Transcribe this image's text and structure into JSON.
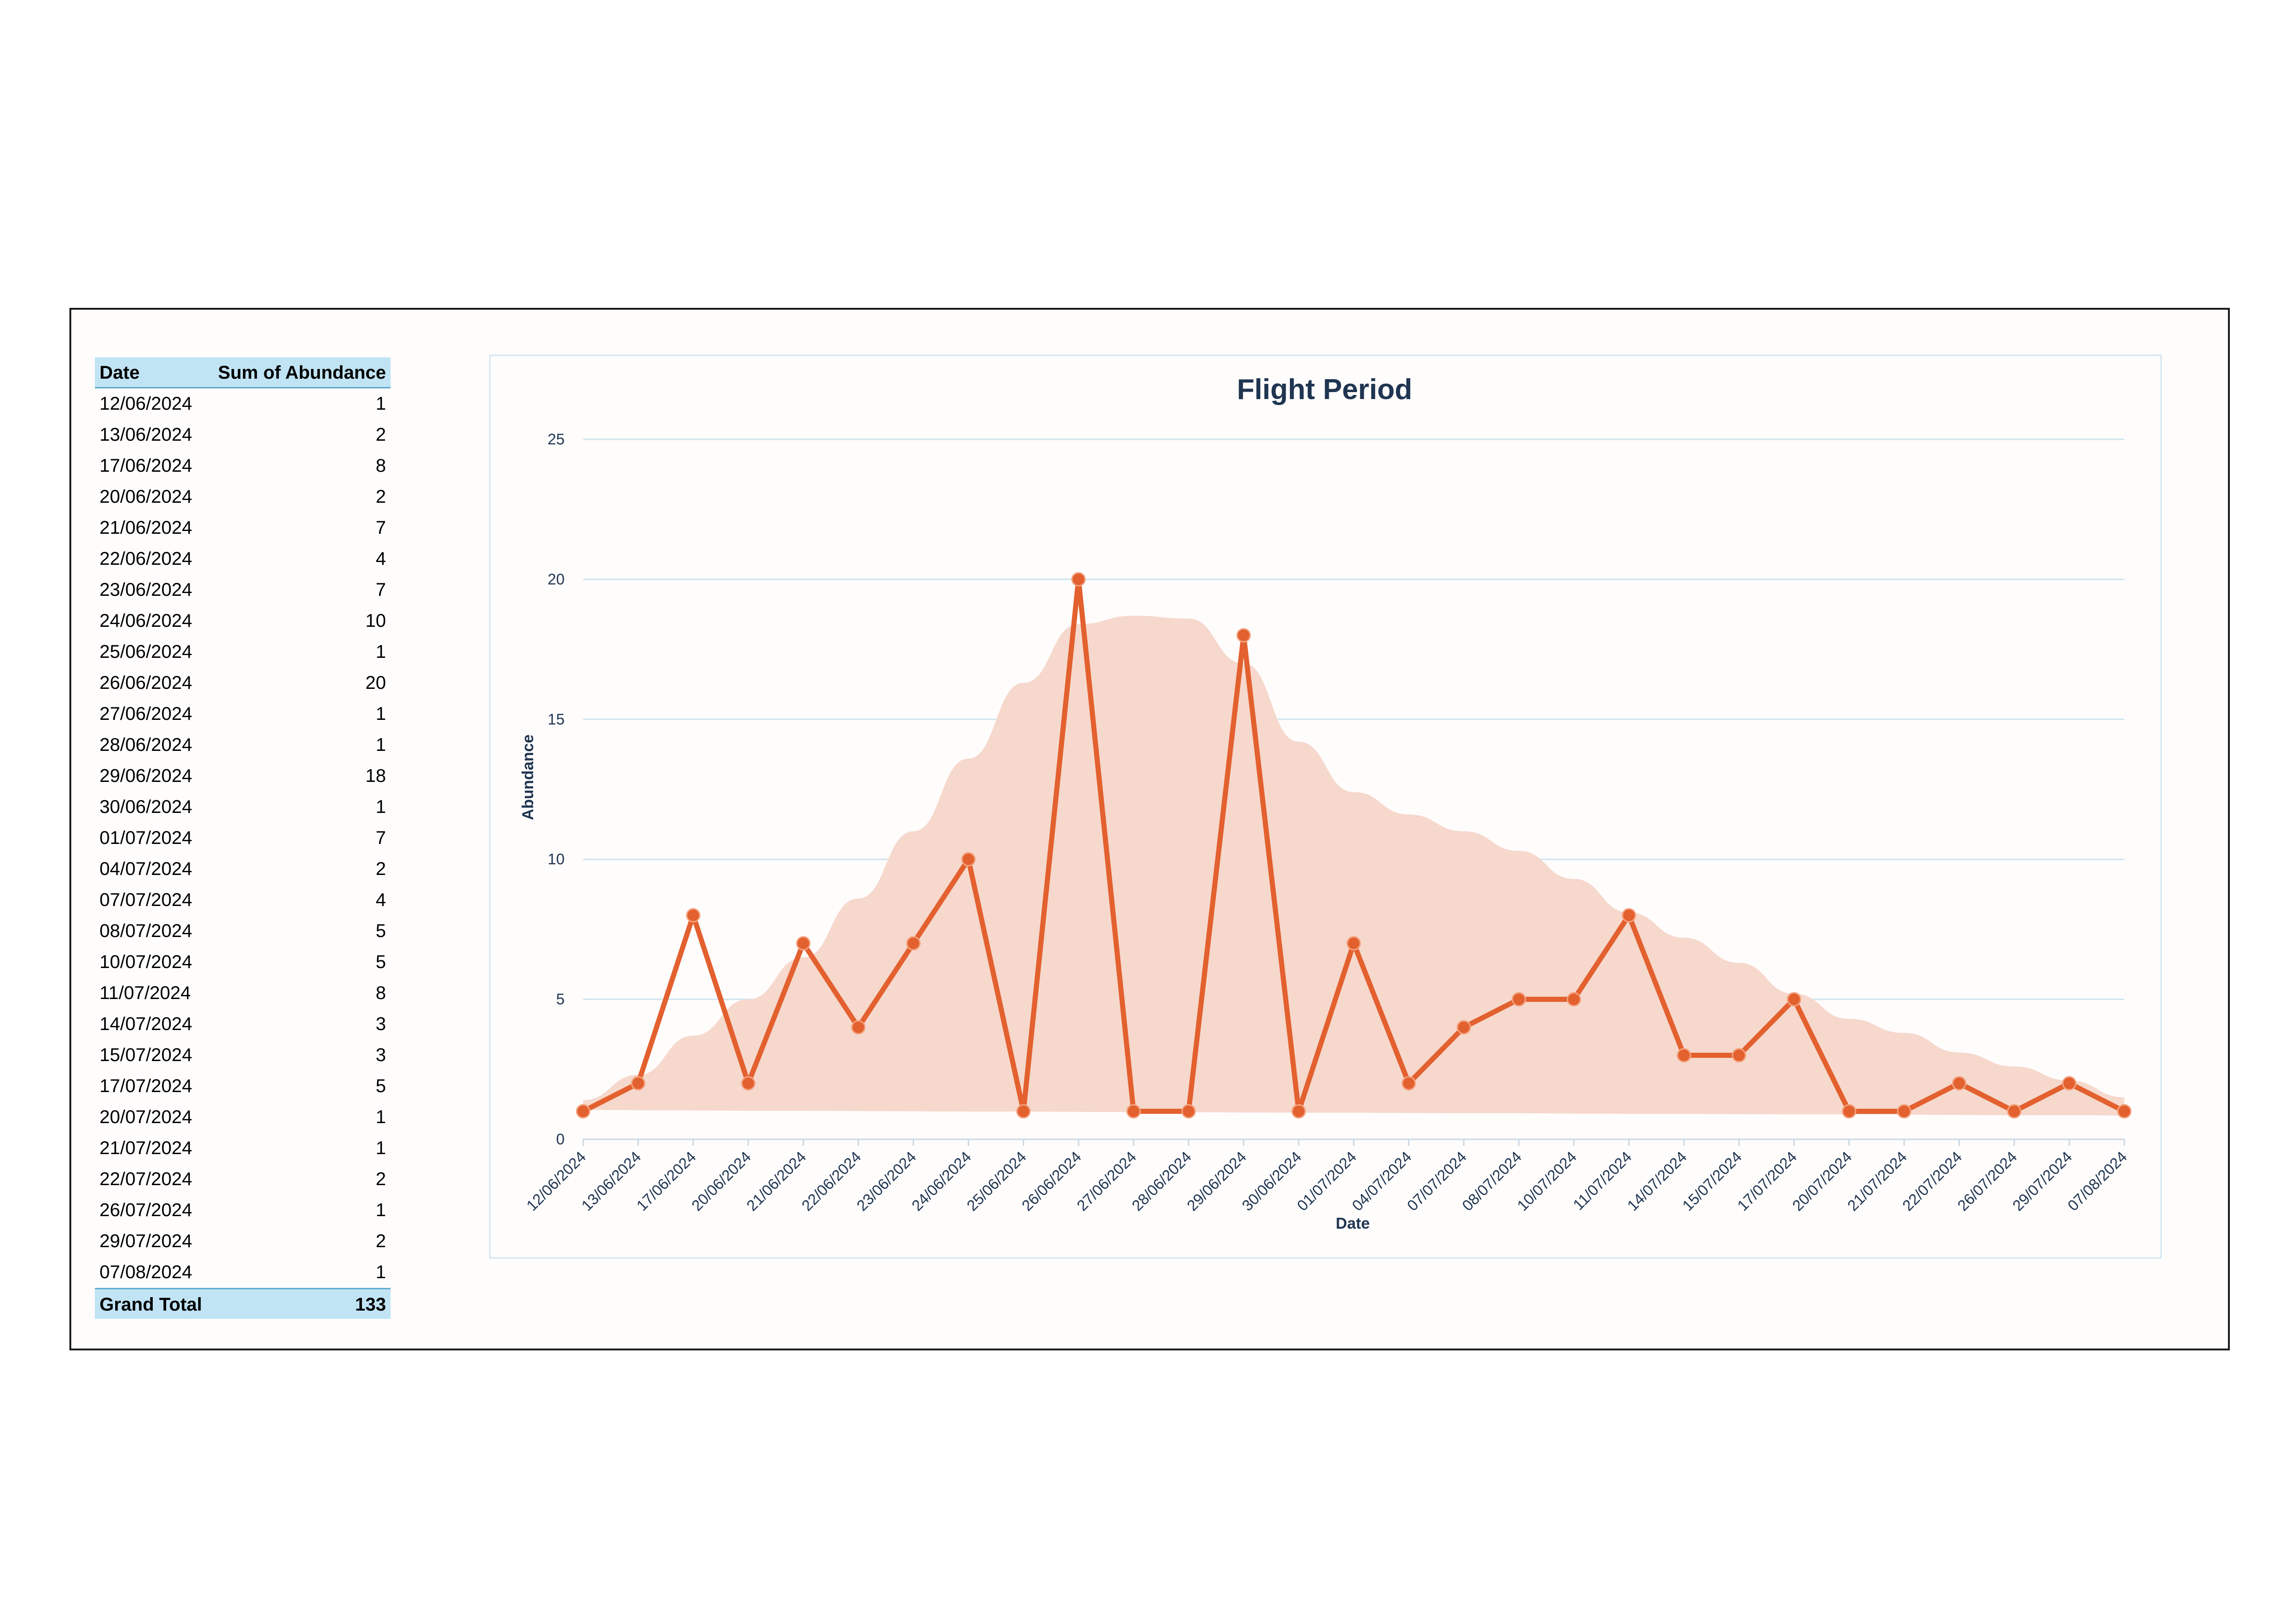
{
  "pivot": {
    "header": {
      "date": "Date",
      "sum": "Sum of Abundance"
    },
    "rows": [
      {
        "date": "12/06/2024",
        "value": 1
      },
      {
        "date": "13/06/2024",
        "value": 2
      },
      {
        "date": "17/06/2024",
        "value": 8
      },
      {
        "date": "20/06/2024",
        "value": 2
      },
      {
        "date": "21/06/2024",
        "value": 7
      },
      {
        "date": "22/06/2024",
        "value": 4
      },
      {
        "date": "23/06/2024",
        "value": 7
      },
      {
        "date": "24/06/2024",
        "value": 10
      },
      {
        "date": "25/06/2024",
        "value": 1
      },
      {
        "date": "26/06/2024",
        "value": 20
      },
      {
        "date": "27/06/2024",
        "value": 1
      },
      {
        "date": "28/06/2024",
        "value": 1
      },
      {
        "date": "29/06/2024",
        "value": 18
      },
      {
        "date": "30/06/2024",
        "value": 1
      },
      {
        "date": "01/07/2024",
        "value": 7
      },
      {
        "date": "04/07/2024",
        "value": 2
      },
      {
        "date": "07/07/2024",
        "value": 4
      },
      {
        "date": "08/07/2024",
        "value": 5
      },
      {
        "date": "10/07/2024",
        "value": 5
      },
      {
        "date": "11/07/2024",
        "value": 8
      },
      {
        "date": "14/07/2024",
        "value": 3
      },
      {
        "date": "15/07/2024",
        "value": 3
      },
      {
        "date": "17/07/2024",
        "value": 5
      },
      {
        "date": "20/07/2024",
        "value": 1
      },
      {
        "date": "21/07/2024",
        "value": 1
      },
      {
        "date": "22/07/2024",
        "value": 2
      },
      {
        "date": "26/07/2024",
        "value": 1
      },
      {
        "date": "29/07/2024",
        "value": 2
      },
      {
        "date": "07/08/2024",
        "value": 1
      }
    ],
    "total": {
      "label": "Grand Total",
      "value": 133
    }
  },
  "chart_data": {
    "type": "line",
    "title": "Flight Period",
    "xlabel": "Date",
    "ylabel": "Abundance",
    "ylim": [
      0,
      25
    ],
    "yticks": [
      0,
      5,
      10,
      15,
      20,
      25
    ],
    "grid": true,
    "categories": [
      "12/06/2024",
      "13/06/2024",
      "17/06/2024",
      "20/06/2024",
      "21/06/2024",
      "22/06/2024",
      "23/06/2024",
      "24/06/2024",
      "25/06/2024",
      "26/06/2024",
      "27/06/2024",
      "28/06/2024",
      "29/06/2024",
      "30/06/2024",
      "01/07/2024",
      "04/07/2024",
      "07/07/2024",
      "08/07/2024",
      "10/07/2024",
      "11/07/2024",
      "14/07/2024",
      "15/07/2024",
      "17/07/2024",
      "20/07/2024",
      "21/07/2024",
      "22/07/2024",
      "26/07/2024",
      "29/07/2024",
      "07/08/2024"
    ],
    "series": [
      {
        "values": [
          1,
          2,
          8,
          2,
          7,
          4,
          7,
          10,
          1,
          20,
          1,
          1,
          18,
          1,
          7,
          2,
          4,
          5,
          5,
          8,
          3,
          3,
          5,
          1,
          1,
          2,
          1,
          2,
          1
        ]
      }
    ],
    "band": {
      "upper": [
        1.4,
        2.3,
        3.7,
        5.0,
        6.5,
        8.6,
        11.0,
        13.6,
        16.3,
        18.4,
        18.7,
        18.6,
        17.0,
        14.2,
        12.4,
        11.6,
        11.0,
        10.3,
        9.3,
        8.1,
        7.2,
        6.3,
        5.2,
        4.3,
        3.8,
        3.1,
        2.6,
        2.1,
        1.5
      ],
      "lower": [
        1.05,
        1.04,
        1.03,
        1.02,
        1.02,
        1.01,
        1.0,
        0.99,
        0.99,
        0.98,
        0.97,
        0.97,
        0.96,
        0.95,
        0.95,
        0.94,
        0.93,
        0.93,
        0.92,
        0.91,
        0.91,
        0.9,
        0.89,
        0.89,
        0.88,
        0.87,
        0.86,
        0.86,
        0.85
      ]
    },
    "colors": {
      "line": "#e3602f",
      "band": "#f6d8cc",
      "grid": "#cfe4ef",
      "text": "#1f3550"
    }
  }
}
